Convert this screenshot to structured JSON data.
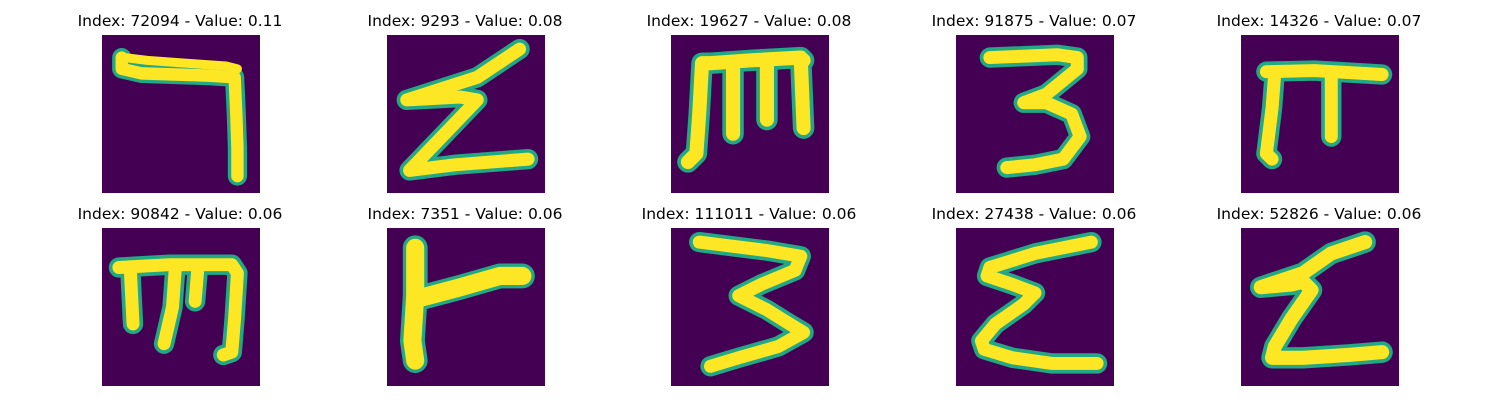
{
  "colors": {
    "background": "#440154",
    "stroke": "#fde725",
    "edge": "#22a884"
  },
  "panels": [
    {
      "title": "Index: 72094 - Value: 0.11",
      "glyph": "hook-seven-icon"
    },
    {
      "title": "Index: 9293 - Value: 0.08",
      "glyph": "zigzag-z-icon"
    },
    {
      "title": "Index: 19627 - Value: 0.08",
      "glyph": "sideways-m-icon"
    },
    {
      "title": "Index: 91875 - Value: 0.07",
      "glyph": "three-icon"
    },
    {
      "title": "Index: 14326 - Value: 0.07",
      "glyph": "pi-icon"
    },
    {
      "title": "Index: 90842 - Value: 0.06",
      "glyph": "sideways-m-icon"
    },
    {
      "title": "Index: 7351 - Value: 0.06",
      "glyph": "t-shape-icon"
    },
    {
      "title": "Index: 111011 - Value: 0.06",
      "glyph": "three-icon"
    },
    {
      "title": "Index: 27438 - Value: 0.06",
      "glyph": "sigma-icon"
    },
    {
      "title": "Index: 52826 - Value: 0.06",
      "glyph": "zigzag-z-icon"
    }
  ]
}
